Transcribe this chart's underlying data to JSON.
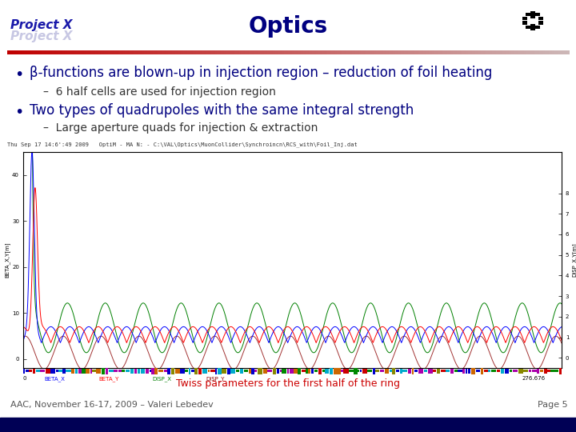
{
  "title": "Optics",
  "title_color": "#000080",
  "title_fontsize": 20,
  "bg_color": "#ffffff",
  "bullet1_text": "β-functions are blown-up in injection region – reduction of foil heating",
  "bullet1_color": "#000080",
  "bullet1_fontsize": 12,
  "sub1_text": "–  6 half cells are used for injection region",
  "sub1_color": "#333333",
  "sub1_fontsize": 10,
  "bullet2_text": "Two types of quadrupoles with the same integral strength",
  "bullet2_color": "#000080",
  "bullet2_fontsize": 12,
  "sub2_text": "–  Large aperture quads for injection & extraction",
  "sub2_color": "#333333",
  "sub2_fontsize": 10,
  "opticm_text": "Thu Sep 17 14:6':49 2009   OptiM - MA N: - C:\\VAL\\Optics\\MuonCollider\\Synchroincn\\RCS_with\\Foil_Inj.dat",
  "opticm_fontsize": 5,
  "caption_text": "Twiss parameters for the first half of the ring",
  "caption_color": "#cc0000",
  "caption_fontsize": 9,
  "footer_text": "AAC, November 16-17, 2009 – Valeri Lebedev",
  "footer_page": "Page 5",
  "footer_fontsize": 8,
  "footer_color": "#555555",
  "navy_bar_color": "#000055",
  "project_x_color": "#000099"
}
